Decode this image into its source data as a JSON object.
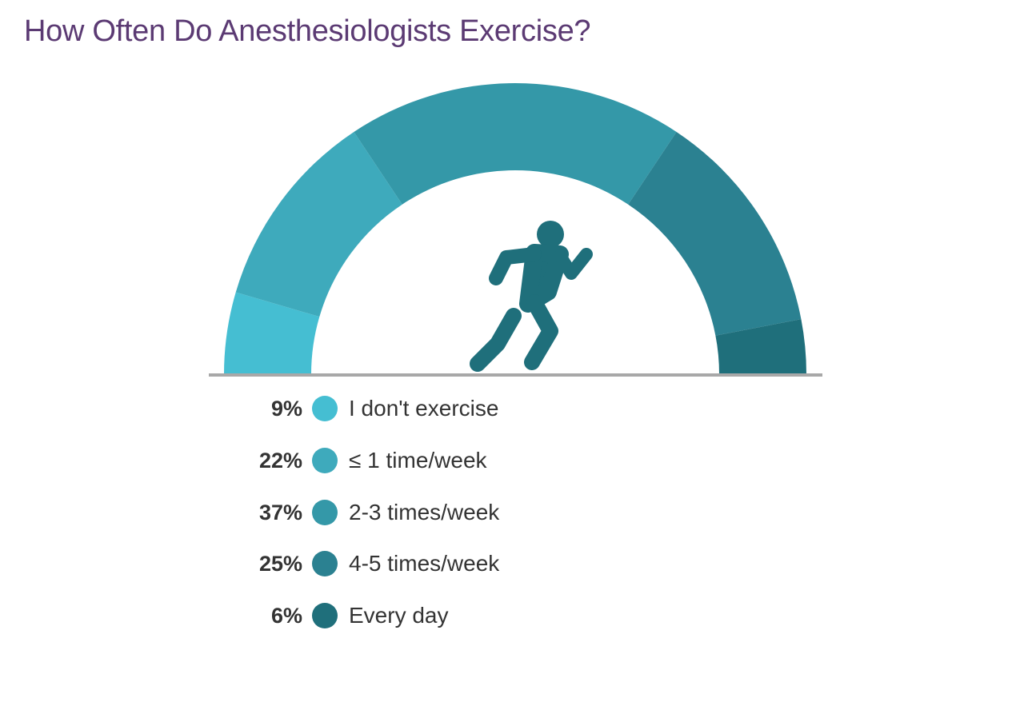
{
  "title": "How Often Do Anesthesiologists Exercise?",
  "icon": "running-person-icon",
  "colors": {
    "title": "#5b3a73",
    "baseline": "#a8a8a8",
    "icon": "#1f6f7b"
  },
  "legend": [
    {
      "pct": "9%",
      "label": "I don't exercise",
      "color": "#45bed2"
    },
    {
      "pct": "22%",
      "label": "≤ 1 time/week",
      "color": "#3eaabc"
    },
    {
      "pct": "37%",
      "label": "2-3 times/week",
      "color": "#3498a8"
    },
    {
      "pct": "25%",
      "label": "4-5 times/week",
      "color": "#2b8191"
    },
    {
      "pct": "6%",
      "label": "Every day",
      "color": "#1f6f7b"
    }
  ],
  "chart_data": {
    "type": "pie",
    "subtype": "semicircle-donut",
    "title": "How Often Do Anesthesiologists Exercise?",
    "categories": [
      "I don't exercise",
      "≤ 1 time/week",
      "2-3 times/week",
      "4-5 times/week",
      "Every day"
    ],
    "values": [
      9,
      22,
      37,
      25,
      6
    ],
    "unit": "%",
    "colors": [
      "#45bed2",
      "#3eaabc",
      "#3498a8",
      "#2b8191",
      "#1f6f7b"
    ],
    "legend_position": "bottom"
  }
}
